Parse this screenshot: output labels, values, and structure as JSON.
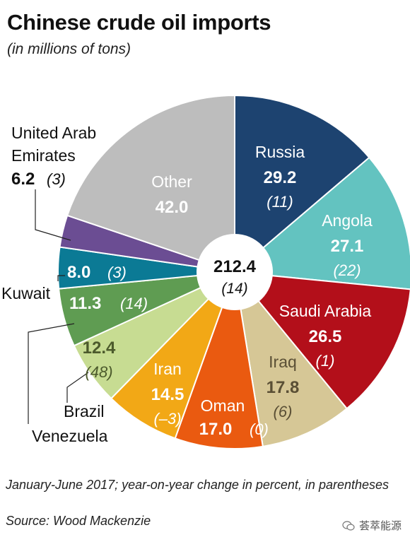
{
  "chart_data": {
    "type": "pie",
    "title": "Chinese crude oil imports",
    "subtitle": "(in millions of tons)",
    "center_total": "212.4",
    "center_change": "(14)",
    "slices": [
      {
        "name": "Russia",
        "value": 29.2,
        "value_text": "29.2",
        "change": "(11)",
        "color": "#1d4370"
      },
      {
        "name": "Angola",
        "value": 27.1,
        "value_text": "27.1",
        "change": "(22)",
        "color": "#63c3c0"
      },
      {
        "name": "Saudi Arabia",
        "value": 26.5,
        "value_text": "26.5",
        "change": "(1)",
        "color": "#b30f1a"
      },
      {
        "name": "Iraq",
        "value": 17.8,
        "value_text": "17.8",
        "change": "(6)",
        "color": "#d6c796"
      },
      {
        "name": "Oman",
        "value": 17.0,
        "value_text": "17.0",
        "change": "(0)",
        "color": "#ea5a10"
      },
      {
        "name": "Iran",
        "value": 14.5,
        "value_text": "14.5",
        "change": "(–3)",
        "color": "#f2a816"
      },
      {
        "name": "Brazil",
        "value": 12.4,
        "value_text": "12.4",
        "change": "(48)",
        "color": "#c7dc92"
      },
      {
        "name": "Venezuela",
        "value": 11.3,
        "value_text": "11.3",
        "change": "(14)",
        "color": "#5f9c52"
      },
      {
        "name": "Kuwait",
        "value": 8.0,
        "value_text": "8.0",
        "change": "(3)",
        "color": "#0b7a95"
      },
      {
        "name": "United Arab Emirates",
        "value": 6.2,
        "value_text": "6.2",
        "change": "(3)",
        "color": "#6b4d93"
      },
      {
        "name": "Other",
        "value": 42.0,
        "value_text": "42.0",
        "change": "",
        "color": "#bdbdbd"
      }
    ]
  },
  "footnote": "January-June 2017; year-on-year change in percent, in parentheses",
  "source": "Source: Wood Mackenzie",
  "watermark": "荟萃能源"
}
